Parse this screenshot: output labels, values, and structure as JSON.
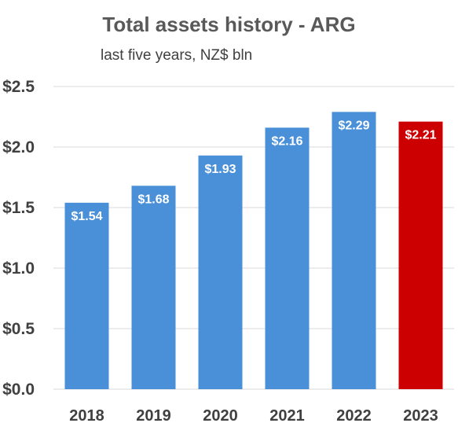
{
  "chart_data": {
    "type": "bar",
    "title": "Total assets history - ARG",
    "subtitle": "last five years, NZ$ bln",
    "categories": [
      "2018",
      "2019",
      "2020",
      "2021",
      "2022",
      "2023"
    ],
    "values": [
      1.54,
      1.68,
      1.93,
      2.16,
      2.29,
      2.21
    ],
    "data_labels": [
      "$1.54",
      "$1.68",
      "$1.93",
      "$2.16",
      "$2.29",
      "$2.21"
    ],
    "bar_colors": [
      "#4a90d9",
      "#4a90d9",
      "#4a90d9",
      "#4a90d9",
      "#4a90d9",
      "#cc0000"
    ],
    "ylim": [
      0,
      2.5
    ],
    "yticks": [
      0,
      0.5,
      1.0,
      1.5,
      2.0,
      2.5
    ],
    "ytick_labels": [
      "$0.0",
      "$0.5",
      "$1.0",
      "$1.5",
      "$2.0",
      "$2.5"
    ],
    "grid": true,
    "gridline_color": "#d9d9d9",
    "xlabel": "",
    "ylabel": ""
  }
}
